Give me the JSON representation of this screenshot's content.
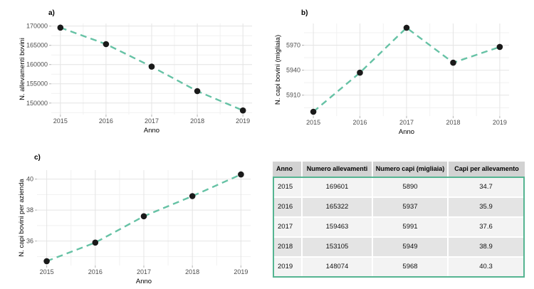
{
  "colors": {
    "background": "#ffffff",
    "line_teal": "#66c2a5",
    "point_black": "#1a1a1a",
    "table_border_teal": "#55b491",
    "table_header_bg": "#d2d2d2",
    "table_row_light": "#f3f3f3",
    "table_row_dark": "#e4e4e4",
    "gridline": "#e4e4e4"
  },
  "chart_data": [
    {
      "type": "line",
      "panel_label": "a)",
      "x": [
        2015,
        2016,
        2017,
        2018,
        2019
      ],
      "values": [
        169601,
        165322,
        159463,
        153105,
        148074
      ],
      "xlabel": "Anno",
      "ylabel": "N. allevamenti bovini",
      "yticks": [
        150000,
        155000,
        160000,
        165000,
        170000
      ],
      "ylim": [
        146997,
        170678
      ],
      "xlim": [
        2014.8,
        2019.2
      ],
      "line_style": "dashed",
      "line_color": "#66c2a5",
      "point_color": "#1a1a1a",
      "grid": "major+minor",
      "legend": "none"
    },
    {
      "type": "line",
      "panel_label": "b)",
      "x": [
        2015,
        2016,
        2017,
        2018,
        2019
      ],
      "values": [
        5890,
        5937,
        5991,
        5949,
        5968
      ],
      "xlabel": "Anno",
      "ylabel": "N. capi bovini (migliaia)",
      "yticks": [
        5910,
        5940,
        5970
      ],
      "ylim": [
        5884.9,
        5996.1
      ],
      "xlim": [
        2014.8,
        2019.2
      ],
      "line_style": "dashed",
      "line_color": "#66c2a5",
      "point_color": "#1a1a1a",
      "grid": "major+minor",
      "legend": "none"
    },
    {
      "type": "line",
      "panel_label": "c)",
      "x": [
        2015,
        2016,
        2017,
        2018,
        2019
      ],
      "values": [
        34.7,
        35.9,
        37.6,
        38.9,
        40.3
      ],
      "xlabel": "Anno",
      "ylabel": "N. capi bovini per azienda",
      "yticks": [
        36,
        38,
        40
      ],
      "ylim": [
        34.42,
        40.58
      ],
      "xlim": [
        2014.8,
        2019.2
      ],
      "line_style": "dashed",
      "line_color": "#66c2a5",
      "point_color": "#1a1a1a",
      "grid": "major+minor",
      "legend": "none"
    }
  ],
  "table": {
    "columns": [
      "Anno",
      "Numero allevamenti",
      "Numero capi (migliaia)",
      "Capi per allevamento"
    ],
    "rows": [
      [
        "2015",
        "169601",
        "5890",
        "34.7"
      ],
      [
        "2016",
        "165322",
        "5937",
        "35.9"
      ],
      [
        "2017",
        "159463",
        "5991",
        "37.6"
      ],
      [
        "2018",
        "153105",
        "5949",
        "38.9"
      ],
      [
        "2019",
        "148074",
        "5968",
        "40.3"
      ]
    ]
  }
}
